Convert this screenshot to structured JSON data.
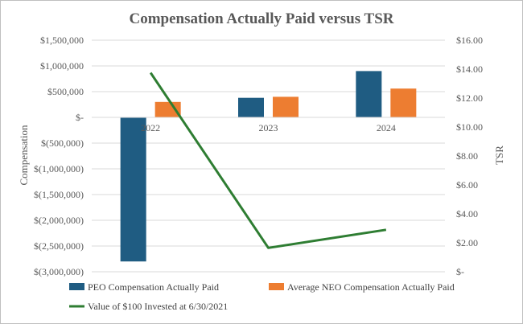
{
  "chart_data": {
    "type": "bar+line",
    "title": "Compensation Actually Paid versus TSR",
    "categories": [
      "2022",
      "2023",
      "2024"
    ],
    "series": [
      {
        "name": "PEO Compensation Actually Paid",
        "type": "bar",
        "axis": "left",
        "color": "#1f5c82",
        "values": [
          -2800000,
          380000,
          900000
        ]
      },
      {
        "name": "Average NEO Compensation Actually Paid",
        "type": "bar",
        "axis": "left",
        "color": "#ed7d31",
        "values": [
          300000,
          400000,
          560000
        ]
      },
      {
        "name": "Value of $100 Invested at 6/30/2021",
        "type": "line",
        "axis": "right",
        "color": "#2e7d32",
        "values": [
          13.75,
          1.65,
          2.9
        ]
      }
    ],
    "y_left": {
      "label": "Compensation",
      "lim": [
        -3000000,
        1500000
      ],
      "ticks": [
        1500000,
        1000000,
        500000,
        0,
        -500000,
        -1000000,
        -1500000,
        -2000000,
        -2500000,
        -3000000
      ],
      "tick_labels": [
        "$1,500,000",
        "$1,000,000",
        "$500,000",
        "$-",
        "$(500,000)",
        "$(1,000,000)",
        "$(1,500,000)",
        "$(2,000,000)",
        "$(2,500,000)",
        "$(3,000,000)"
      ]
    },
    "y_right": {
      "label": "TSR",
      "lim": [
        0,
        16
      ],
      "ticks": [
        16,
        14,
        12,
        10,
        8,
        6,
        4,
        2,
        0
      ],
      "tick_labels": [
        "$16.00",
        "$14.00",
        "$12.00",
        "$10.00",
        "$8.00",
        "$6.00",
        "$4.00",
        "$2.00",
        "$-"
      ]
    },
    "grid": true,
    "legend_position": "bottom"
  }
}
